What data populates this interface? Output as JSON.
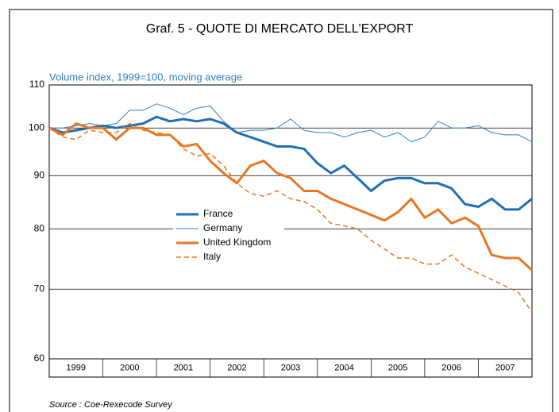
{
  "chart_data": {
    "type": "line",
    "title": "Graf. 5 - QUOTE DI MERCATO DELL'EXPORT",
    "subtitle": "Volume index, 1999=100, moving average",
    "source": "Source : Coe-Rexecode Survey",
    "log_scale": true,
    "grid": true,
    "legend": "center",
    "x": [
      1999,
      1999.25,
      1999.5,
      1999.75,
      2000,
      2000.25,
      2000.5,
      2000.75,
      2001,
      2001.25,
      2001.5,
      2001.75,
      2002,
      2002.25,
      2002.5,
      2002.75,
      2003,
      2003.25,
      2003.5,
      2003.75,
      2004,
      2004.25,
      2004.5,
      2004.75,
      2005,
      2005.25,
      2005.5,
      2005.75,
      2006,
      2006.25,
      2006.5,
      2006.75,
      2007,
      2007.25,
      2007.5,
      2007.75,
      2008
    ],
    "xlim": [
      1999,
      2008
    ],
    "xticks": [
      1999,
      2000,
      2001,
      2002,
      2003,
      2004,
      2005,
      2006,
      2007,
      2008
    ],
    "year_labels": [
      "1999",
      "2000",
      "2001",
      "2002",
      "2003",
      "2004",
      "2005",
      "2006",
      "2007"
    ],
    "ylim": [
      60,
      110
    ],
    "yticks": [
      60,
      70,
      80,
      90,
      100,
      110
    ],
    "series": [
      {
        "name": "France",
        "color": "#1f6fb5",
        "width": 3,
        "dashed": false,
        "values": [
          100,
          99,
          99.5,
          100,
          100.5,
          100,
          100.5,
          101,
          102.5,
          101.5,
          102,
          101.5,
          102,
          101,
          99,
          98,
          97,
          96,
          96,
          95.5,
          92.5,
          90.5,
          92,
          89.5,
          87,
          89,
          89.5,
          89.5,
          88.5,
          88.5,
          87.5,
          84.5,
          84,
          85.5,
          83.5,
          83.5,
          85.5
        ]
      },
      {
        "name": "Germany",
        "color": "#2f7fc4",
        "width": 1,
        "dashed": false,
        "values": [
          100,
          100,
          100.5,
          101,
          100.5,
          101,
          104,
          104,
          105.5,
          104.5,
          103,
          104.5,
          105,
          101.5,
          99,
          99.5,
          99.5,
          100,
          102,
          99.5,
          99,
          99,
          98,
          99,
          99.5,
          98,
          99,
          97,
          98,
          101.5,
          100,
          100,
          100.5,
          99,
          98.5,
          98.5,
          97
        ]
      },
      {
        "name": "United Kingdom",
        "color": "#e87722",
        "width": 3,
        "dashed": false,
        "values": [
          100,
          98.5,
          101,
          100,
          100,
          97.5,
          100,
          100,
          98.5,
          98.5,
          96,
          96.5,
          93,
          90.5,
          88.5,
          92,
          93,
          90.5,
          89.5,
          87,
          87,
          85.5,
          84.5,
          83.5,
          82.5,
          81.5,
          83,
          85.5,
          82,
          83.5,
          81,
          82,
          80.5,
          75.5,
          75,
          75,
          73
        ]
      },
      {
        "name": "Italy",
        "color": "#e87722",
        "width": 1.5,
        "dashed": true,
        "values": [
          100,
          98,
          97.5,
          99.5,
          99,
          99,
          101,
          99.5,
          99,
          98.5,
          95.5,
          94,
          94.5,
          92,
          88.5,
          86.5,
          86,
          87,
          85.5,
          85,
          83.5,
          81,
          80.5,
          80,
          78,
          76.5,
          75,
          75,
          74,
          74,
          75.5,
          73.5,
          72.5,
          71.5,
          70.5,
          69.5,
          66.5
        ]
      }
    ]
  }
}
